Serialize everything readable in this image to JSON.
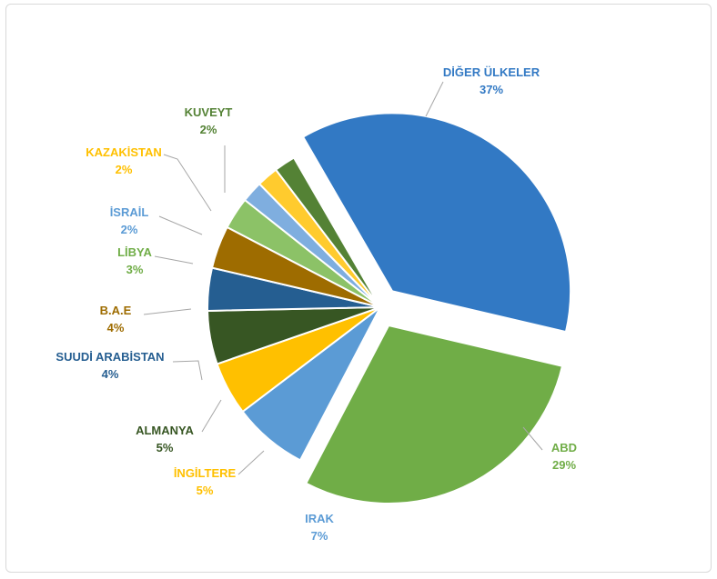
{
  "chart_data": {
    "type": "pie",
    "title": "",
    "slices": [
      {
        "name": "DİĞER ÜLKELER",
        "value": 37,
        "label": "37%",
        "color": "#3279C4",
        "explode": true
      },
      {
        "name": "ABD",
        "value": 29,
        "label": "29%",
        "color": "#70AD47",
        "explode": true
      },
      {
        "name": "IRAK",
        "value": 7,
        "label": "7%",
        "color": "#5B9BD5",
        "explode": false
      },
      {
        "name": "İNGİLTERE",
        "value": 5,
        "label": "5%",
        "color": "#FFC000",
        "explode": false
      },
      {
        "name": "ALMANYA",
        "value": 5,
        "label": "5%",
        "color": "#375623",
        "explode": false
      },
      {
        "name": "SUUDİ ARABİSTAN",
        "value": 4,
        "label": "4%",
        "color": "#255E91",
        "explode": false
      },
      {
        "name": "B.A.E",
        "value": 4,
        "label": "4%",
        "color": "#9E6C00",
        "explode": false
      },
      {
        "name": "LİBYA",
        "value": 3,
        "label": "3%",
        "color": "#8CC267",
        "explode": false
      },
      {
        "name": "İSRAİL",
        "value": 2,
        "label": "2%",
        "color": "#7FAEDF",
        "explode": false
      },
      {
        "name": "KAZAKİSTAN",
        "value": 2,
        "label": "2%",
        "color": "#FFCB2E",
        "explode": false
      },
      {
        "name": "KUVEYT",
        "value": 2,
        "label": "2%",
        "color": "#548235",
        "explode": false
      }
    ],
    "label_colors": {
      "DİĞER ÜLKELER": "#3279C4",
      "ABD": "#70AD47",
      "IRAK": "#5B9BD5",
      "İNGİLTERE": "#FFC000",
      "ALMANYA": "#375623",
      "SUUDİ ARABİSTAN": "#255E91",
      "B.A.E": "#9E6C00",
      "LİBYA": "#70AD47",
      "İSRAİL": "#5B9BD5",
      "KAZAKİSTAN": "#FFC000",
      "KUVEYT": "#548235"
    },
    "legend": "none",
    "grid": false
  }
}
